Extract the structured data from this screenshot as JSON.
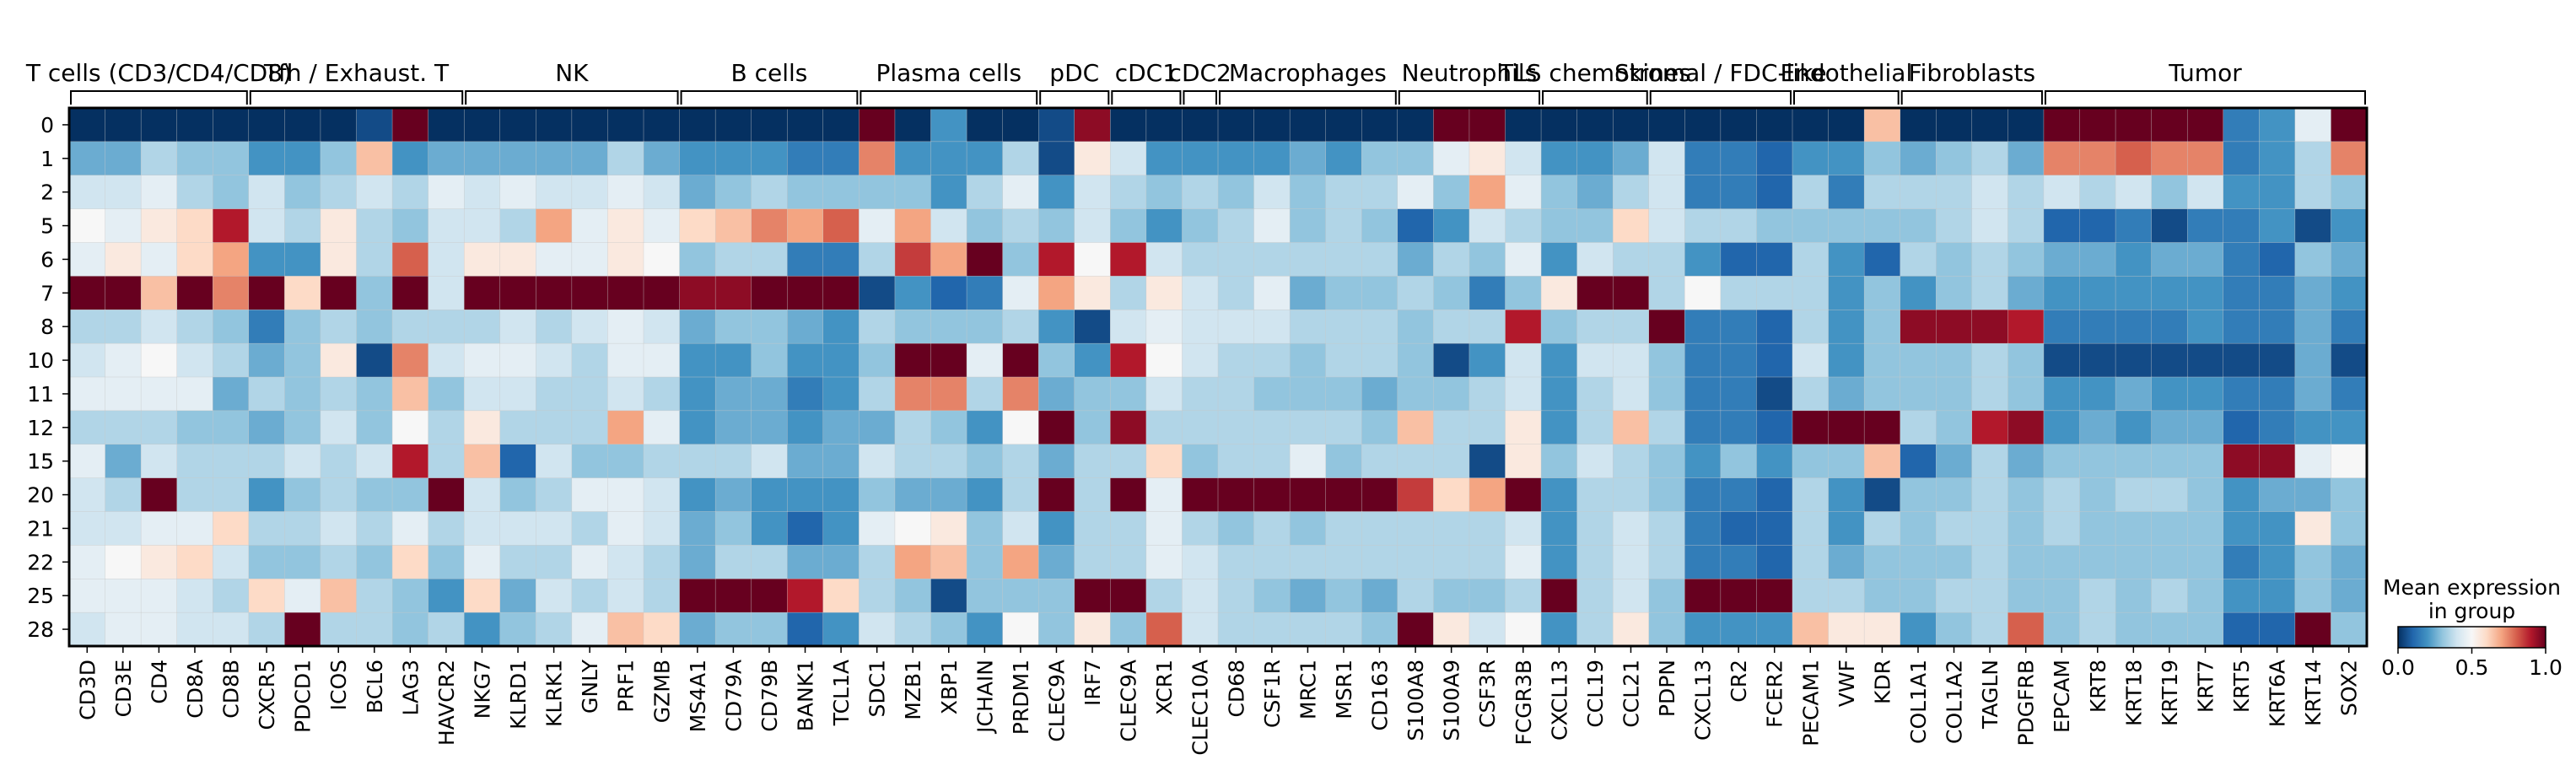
{
  "chart_data": {
    "type": "heatmap",
    "title": "",
    "xlabel": "",
    "ylabel": "",
    "colormap": "RdBu_r",
    "color_low": "#053061",
    "color_mid": "#f7f7f7",
    "color_high": "#67001f",
    "vmin": 0.0,
    "vmax": 1.0,
    "groups": [
      {
        "label": "T cells (CD3/CD4/CD8)",
        "genes": [
          "CD3D",
          "CD3E",
          "CD4",
          "CD8A",
          "CD8B"
        ]
      },
      {
        "label": "Tfh / Exhaust. T",
        "genes": [
          "CXCR5",
          "PDCD1",
          "ICOS",
          "BCL6",
          "LAG3",
          "HAVCR2"
        ]
      },
      {
        "label": "NK",
        "genes": [
          "NKG7",
          "KLRD1",
          "KLRK1",
          "GNLY",
          "PRF1",
          "GZMB"
        ]
      },
      {
        "label": "B cells",
        "genes": [
          "MS4A1",
          "CD79A",
          "CD79B",
          "BANK1",
          "TCL1A"
        ]
      },
      {
        "label": "Plasma cells",
        "genes": [
          "SDC1",
          "MZB1",
          "XBP1",
          "JCHAIN",
          "PRDM1"
        ]
      },
      {
        "label": "pDC",
        "genes": [
          "CLEC9A",
          "IRF7"
        ]
      },
      {
        "label": "cDC1",
        "genes": [
          "CLEC9A",
          "XCR1"
        ]
      },
      {
        "label": "cDC2",
        "genes": [
          "CLEC10A"
        ]
      },
      {
        "label": "Macrophages",
        "genes": [
          "CD68",
          "CSF1R",
          "MRC1",
          "MSR1",
          "CD163"
        ]
      },
      {
        "label": "Neutrophils",
        "genes": [
          "S100A8",
          "S100A9",
          "CSF3R",
          "FCGR3B"
        ]
      },
      {
        "label": "TLS chemokines",
        "genes": [
          "CXCL13",
          "CCL19",
          "CCL21"
        ]
      },
      {
        "label": "Stromal / FDC-like",
        "genes": [
          "PDPN",
          "CXCL13",
          "CR2",
          "FCER2"
        ]
      },
      {
        "label": "Endothelial",
        "genes": [
          "PECAM1",
          "VWF",
          "KDR"
        ]
      },
      {
        "label": "Fibroblasts",
        "genes": [
          "COL1A1",
          "COL1A2",
          "TAGLN",
          "PDGFRB"
        ]
      },
      {
        "label": "Tumor",
        "genes": [
          "EPCAM",
          "KRT8",
          "KRT18",
          "KRT19",
          "KRT7",
          "KRT5",
          "KRT6A",
          "KRT14",
          "SOX2"
        ]
      }
    ],
    "rows": [
      "0",
      "1",
      "2",
      "5",
      "6",
      "7",
      "8",
      "10",
      "11",
      "12",
      "15",
      "20",
      "21",
      "22",
      "25",
      "28"
    ],
    "values": [
      [
        0.0,
        0.0,
        0.0,
        0.0,
        0.0,
        0.0,
        0.0,
        0.0,
        0.05,
        1.0,
        0.0,
        0.0,
        0.0,
        0.0,
        0.0,
        0.0,
        0.0,
        0.0,
        0.0,
        0.0,
        0.0,
        0.0,
        1.0,
        0.0,
        0.2,
        0.0,
        0.0,
        0.05,
        0.95,
        0.0,
        0.0,
        0.0,
        0.0,
        0.0,
        0.0,
        0.0,
        0.0,
        0.0,
        1.0,
        1.0,
        0.0,
        0.0,
        0.0,
        0.0,
        0.0,
        0.0,
        0.0,
        0.0,
        0.0,
        0.0,
        0.65,
        0.0,
        0.0,
        0.0,
        0.0,
        1.0,
        1.0,
        1.0,
        1.0,
        1.0,
        0.15,
        0.2,
        0.45,
        1.0
      ],
      [
        0.25,
        0.25,
        0.35,
        0.3,
        0.3,
        0.2,
        0.2,
        0.3,
        0.65,
        0.2,
        0.25,
        0.25,
        0.25,
        0.25,
        0.25,
        0.35,
        0.25,
        0.2,
        0.2,
        0.2,
        0.15,
        0.15,
        0.75,
        0.2,
        0.2,
        0.2,
        0.35,
        0.05,
        0.55,
        0.4,
        0.2,
        0.2,
        0.2,
        0.2,
        0.25,
        0.2,
        0.3,
        0.3,
        0.45,
        0.55,
        0.4,
        0.2,
        0.2,
        0.25,
        0.4,
        0.15,
        0.15,
        0.1,
        0.2,
        0.2,
        0.3,
        0.25,
        0.3,
        0.35,
        0.25,
        0.75,
        0.75,
        0.8,
        0.75,
        0.75,
        0.15,
        0.2,
        0.35,
        0.75
      ],
      [
        0.4,
        0.4,
        0.45,
        0.35,
        0.3,
        0.4,
        0.3,
        0.35,
        0.4,
        0.35,
        0.45,
        0.4,
        0.45,
        0.4,
        0.4,
        0.45,
        0.4,
        0.25,
        0.3,
        0.35,
        0.3,
        0.3,
        0.3,
        0.3,
        0.2,
        0.35,
        0.45,
        0.2,
        0.4,
        0.35,
        0.3,
        0.35,
        0.3,
        0.4,
        0.3,
        0.35,
        0.35,
        0.45,
        0.3,
        0.7,
        0.45,
        0.3,
        0.25,
        0.35,
        0.4,
        0.15,
        0.15,
        0.1,
        0.35,
        0.15,
        0.35,
        0.35,
        0.35,
        0.4,
        0.35,
        0.4,
        0.35,
        0.4,
        0.3,
        0.4,
        0.2,
        0.2,
        0.35,
        0.3
      ],
      [
        0.5,
        0.45,
        0.55,
        0.6,
        0.9,
        0.4,
        0.35,
        0.55,
        0.35,
        0.3,
        0.4,
        0.4,
        0.35,
        0.7,
        0.45,
        0.55,
        0.45,
        0.6,
        0.65,
        0.75,
        0.7,
        0.8,
        0.45,
        0.7,
        0.4,
        0.3,
        0.35,
        0.3,
        0.4,
        0.3,
        0.2,
        0.3,
        0.35,
        0.45,
        0.3,
        0.35,
        0.3,
        0.1,
        0.2,
        0.4,
        0.35,
        0.3,
        0.3,
        0.6,
        0.4,
        0.35,
        0.35,
        0.3,
        0.3,
        0.3,
        0.3,
        0.3,
        0.35,
        0.4,
        0.35,
        0.1,
        0.1,
        0.15,
        0.05,
        0.15,
        0.15,
        0.2,
        0.05,
        0.2
      ],
      [
        0.45,
        0.55,
        0.45,
        0.6,
        0.7,
        0.2,
        0.2,
        0.55,
        0.35,
        0.8,
        0.4,
        0.55,
        0.55,
        0.45,
        0.45,
        0.55,
        0.5,
        0.3,
        0.35,
        0.35,
        0.15,
        0.15,
        0.35,
        0.85,
        0.7,
        1.0,
        0.3,
        0.9,
        0.5,
        0.9,
        0.4,
        0.35,
        0.35,
        0.35,
        0.35,
        0.35,
        0.35,
        0.25,
        0.35,
        0.3,
        0.45,
        0.2,
        0.4,
        0.35,
        0.35,
        0.2,
        0.1,
        0.1,
        0.35,
        0.2,
        0.1,
        0.35,
        0.3,
        0.35,
        0.3,
        0.25,
        0.25,
        0.2,
        0.25,
        0.25,
        0.15,
        0.1,
        0.3,
        0.25
      ],
      [
        1.0,
        1.0,
        0.65,
        1.0,
        0.75,
        1.0,
        0.6,
        1.0,
        0.3,
        1.0,
        0.4,
        1.0,
        1.0,
        1.0,
        1.0,
        1.0,
        1.0,
        0.95,
        0.95,
        1.0,
        1.0,
        1.0,
        0.05,
        0.2,
        0.1,
        0.15,
        0.45,
        0.7,
        0.55,
        0.35,
        0.55,
        0.4,
        0.35,
        0.45,
        0.25,
        0.3,
        0.3,
        0.35,
        0.3,
        0.15,
        0.3,
        0.55,
        1.0,
        1.0,
        0.35,
        0.5,
        0.35,
        0.35,
        0.35,
        0.2,
        0.3,
        0.2,
        0.3,
        0.35,
        0.25,
        0.2,
        0.2,
        0.2,
        0.2,
        0.2,
        0.15,
        0.15,
        0.25,
        0.2
      ],
      [
        0.35,
        0.35,
        0.4,
        0.35,
        0.3,
        0.15,
        0.3,
        0.35,
        0.3,
        0.35,
        0.35,
        0.35,
        0.4,
        0.35,
        0.4,
        0.45,
        0.4,
        0.25,
        0.3,
        0.3,
        0.25,
        0.2,
        0.35,
        0.3,
        0.3,
        0.3,
        0.35,
        0.2,
        0.05,
        0.4,
        0.45,
        0.4,
        0.4,
        0.4,
        0.35,
        0.35,
        0.35,
        0.3,
        0.35,
        0.35,
        0.9,
        0.3,
        0.35,
        0.35,
        1.0,
        0.15,
        0.15,
        0.1,
        0.35,
        0.2,
        0.3,
        0.95,
        0.95,
        0.95,
        0.9,
        0.15,
        0.15,
        0.15,
        0.15,
        0.2,
        0.15,
        0.15,
        0.25,
        0.15
      ],
      [
        0.4,
        0.45,
        0.5,
        0.4,
        0.35,
        0.25,
        0.3,
        0.55,
        0.05,
        0.75,
        0.4,
        0.45,
        0.45,
        0.4,
        0.35,
        0.45,
        0.45,
        0.2,
        0.2,
        0.3,
        0.2,
        0.2,
        0.3,
        1.0,
        1.0,
        0.45,
        1.0,
        0.3,
        0.2,
        0.9,
        0.5,
        0.4,
        0.35,
        0.35,
        0.3,
        0.35,
        0.35,
        0.3,
        0.05,
        0.2,
        0.4,
        0.2,
        0.4,
        0.4,
        0.3,
        0.15,
        0.15,
        0.1,
        0.4,
        0.2,
        0.3,
        0.3,
        0.3,
        0.35,
        0.3,
        0.05,
        0.05,
        0.05,
        0.05,
        0.05,
        0.05,
        0.05,
        0.25,
        0.05
      ],
      [
        0.45,
        0.45,
        0.45,
        0.45,
        0.25,
        0.35,
        0.3,
        0.35,
        0.3,
        0.65,
        0.3,
        0.4,
        0.4,
        0.35,
        0.35,
        0.4,
        0.35,
        0.2,
        0.25,
        0.25,
        0.15,
        0.2,
        0.35,
        0.75,
        0.75,
        0.35,
        0.75,
        0.25,
        0.3,
        0.3,
        0.4,
        0.35,
        0.35,
        0.3,
        0.3,
        0.3,
        0.25,
        0.3,
        0.3,
        0.35,
        0.4,
        0.2,
        0.35,
        0.4,
        0.3,
        0.15,
        0.15,
        0.05,
        0.35,
        0.25,
        0.3,
        0.3,
        0.3,
        0.35,
        0.3,
        0.2,
        0.2,
        0.25,
        0.2,
        0.2,
        0.15,
        0.15,
        0.25,
        0.15
      ],
      [
        0.35,
        0.35,
        0.35,
        0.3,
        0.3,
        0.25,
        0.3,
        0.4,
        0.3,
        0.5,
        0.35,
        0.55,
        0.35,
        0.35,
        0.35,
        0.7,
        0.45,
        0.2,
        0.25,
        0.25,
        0.2,
        0.25,
        0.25,
        0.35,
        0.3,
        0.2,
        0.5,
        1.0,
        0.3,
        0.95,
        0.35,
        0.35,
        0.35,
        0.35,
        0.35,
        0.35,
        0.3,
        0.65,
        0.35,
        0.35,
        0.55,
        0.2,
        0.35,
        0.65,
        0.35,
        0.15,
        0.15,
        0.1,
        1.0,
        1.0,
        1.0,
        0.35,
        0.3,
        0.9,
        0.95,
        0.2,
        0.25,
        0.2,
        0.25,
        0.25,
        0.1,
        0.15,
        0.2,
        0.2
      ],
      [
        0.45,
        0.25,
        0.4,
        0.35,
        0.35,
        0.35,
        0.4,
        0.35,
        0.4,
        0.9,
        0.35,
        0.65,
        0.1,
        0.4,
        0.3,
        0.3,
        0.35,
        0.35,
        0.35,
        0.4,
        0.25,
        0.25,
        0.4,
        0.35,
        0.35,
        0.3,
        0.35,
        0.25,
        0.35,
        0.35,
        0.6,
        0.3,
        0.35,
        0.35,
        0.45,
        0.3,
        0.35,
        0.35,
        0.35,
        0.05,
        0.55,
        0.3,
        0.4,
        0.35,
        0.3,
        0.2,
        0.3,
        0.2,
        0.3,
        0.3,
        0.65,
        0.1,
        0.25,
        0.35,
        0.25,
        0.3,
        0.3,
        0.3,
        0.3,
        0.3,
        0.95,
        0.95,
        0.45,
        0.5
      ],
      [
        0.4,
        0.35,
        1.0,
        0.35,
        0.35,
        0.2,
        0.3,
        0.35,
        0.3,
        0.3,
        1.0,
        0.4,
        0.3,
        0.35,
        0.45,
        0.45,
        0.4,
        0.2,
        0.25,
        0.2,
        0.2,
        0.2,
        0.3,
        0.25,
        0.25,
        0.2,
        0.35,
        1.0,
        0.35,
        1.0,
        0.45,
        1.0,
        1.0,
        1.0,
        1.0,
        1.0,
        1.0,
        0.85,
        0.6,
        0.7,
        1.0,
        0.2,
        0.35,
        0.35,
        0.3,
        0.15,
        0.15,
        0.1,
        0.35,
        0.2,
        0.05,
        0.3,
        0.3,
        0.35,
        0.3,
        0.35,
        0.3,
        0.35,
        0.35,
        0.3,
        0.2,
        0.25,
        0.25,
        0.3
      ],
      [
        0.4,
        0.4,
        0.45,
        0.45,
        0.6,
        0.35,
        0.35,
        0.4,
        0.35,
        0.45,
        0.35,
        0.4,
        0.4,
        0.4,
        0.35,
        0.45,
        0.4,
        0.25,
        0.3,
        0.2,
        0.1,
        0.2,
        0.45,
        0.5,
        0.55,
        0.3,
        0.4,
        0.2,
        0.35,
        0.35,
        0.45,
        0.35,
        0.3,
        0.35,
        0.3,
        0.35,
        0.35,
        0.35,
        0.35,
        0.35,
        0.4,
        0.2,
        0.35,
        0.4,
        0.35,
        0.15,
        0.1,
        0.1,
        0.35,
        0.2,
        0.35,
        0.3,
        0.35,
        0.35,
        0.3,
        0.35,
        0.3,
        0.3,
        0.3,
        0.3,
        0.2,
        0.2,
        0.55,
        0.3
      ],
      [
        0.45,
        0.5,
        0.55,
        0.6,
        0.4,
        0.3,
        0.3,
        0.35,
        0.3,
        0.6,
        0.3,
        0.45,
        0.35,
        0.35,
        0.45,
        0.4,
        0.35,
        0.25,
        0.35,
        0.35,
        0.25,
        0.25,
        0.35,
        0.7,
        0.65,
        0.3,
        0.7,
        0.25,
        0.35,
        0.35,
        0.45,
        0.4,
        0.35,
        0.35,
        0.35,
        0.35,
        0.35,
        0.35,
        0.35,
        0.35,
        0.45,
        0.2,
        0.35,
        0.4,
        0.35,
        0.15,
        0.15,
        0.1,
        0.35,
        0.25,
        0.3,
        0.3,
        0.3,
        0.35,
        0.3,
        0.3,
        0.3,
        0.3,
        0.3,
        0.3,
        0.15,
        0.2,
        0.3,
        0.25
      ],
      [
        0.45,
        0.45,
        0.45,
        0.4,
        0.35,
        0.6,
        0.45,
        0.65,
        0.35,
        0.3,
        0.2,
        0.6,
        0.25,
        0.4,
        0.35,
        0.4,
        0.35,
        1.0,
        1.0,
        1.0,
        0.9,
        0.6,
        0.35,
        0.3,
        0.05,
        0.3,
        0.3,
        0.3,
        1.0,
        1.0,
        0.35,
        0.4,
        0.35,
        0.3,
        0.25,
        0.3,
        0.25,
        0.35,
        0.3,
        0.3,
        0.35,
        1.0,
        0.35,
        0.4,
        0.3,
        1.0,
        1.0,
        1.0,
        0.35,
        0.35,
        0.3,
        0.3,
        0.35,
        0.35,
        0.3,
        0.3,
        0.35,
        0.3,
        0.35,
        0.3,
        0.2,
        0.2,
        0.3,
        0.25
      ],
      [
        0.4,
        0.45,
        0.45,
        0.4,
        0.4,
        0.35,
        1.0,
        0.35,
        0.35,
        0.3,
        0.35,
        0.2,
        0.3,
        0.35,
        0.45,
        0.65,
        0.6,
        0.25,
        0.3,
        0.3,
        0.1,
        0.2,
        0.4,
        0.35,
        0.3,
        0.2,
        0.5,
        0.3,
        0.55,
        0.3,
        0.8,
        0.4,
        0.35,
        0.35,
        0.35,
        0.35,
        0.3,
        1.0,
        0.55,
        0.4,
        0.5,
        0.2,
        0.35,
        0.55,
        0.3,
        0.2,
        0.2,
        0.2,
        0.65,
        0.55,
        0.55,
        0.2,
        0.3,
        0.35,
        0.8,
        0.3,
        0.35,
        0.3,
        0.3,
        0.3,
        0.1,
        0.1,
        1.0,
        0.3
      ]
    ],
    "colorbar": {
      "label": "Mean expression\nin group",
      "label_lines": [
        "Mean expression",
        "in group"
      ],
      "ticks": [
        "0.0",
        "0.5",
        "1.0"
      ]
    }
  }
}
